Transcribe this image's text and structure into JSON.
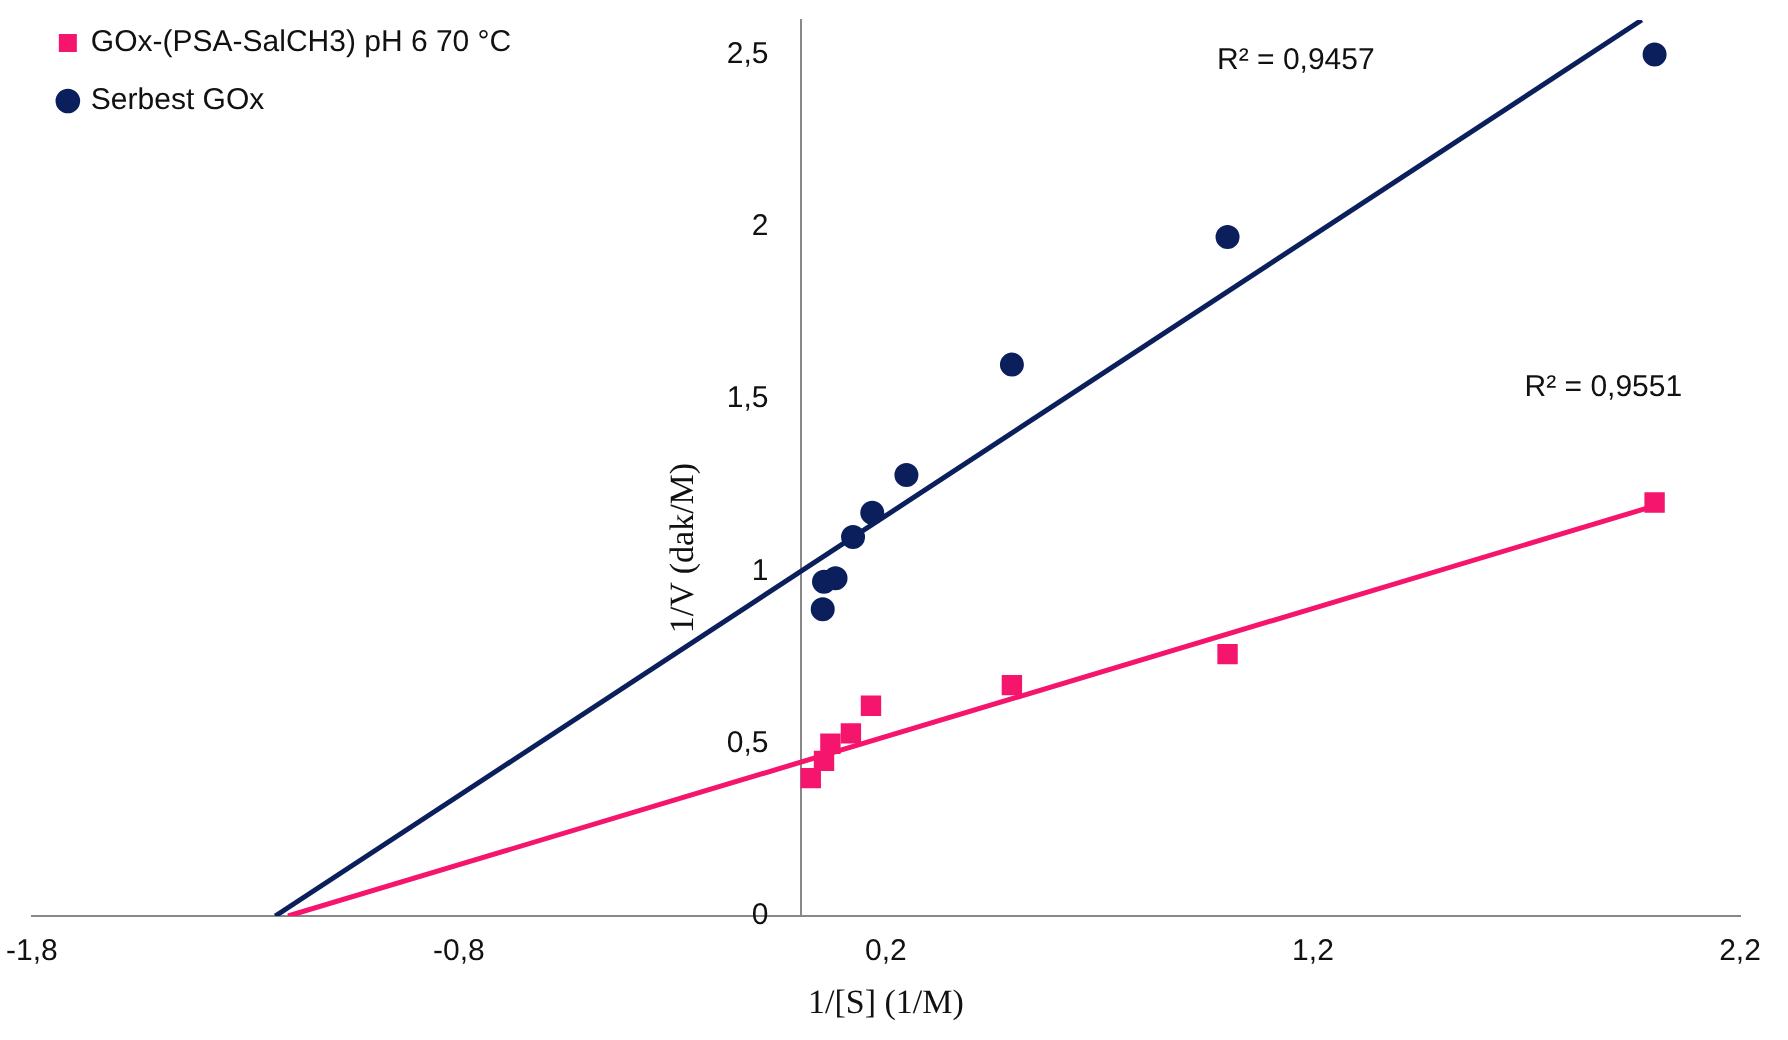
{
  "chart_data": {
    "type": "scatter",
    "xlabel": "1/[S] (1/M)",
    "ylabel": "1/V (dak/M)",
    "xlim": [
      -1.8,
      2.2
    ],
    "xticks": [
      {
        "value": -1.8,
        "label": "-1,8"
      },
      {
        "value": -0.8,
        "label": "-0,8"
      },
      {
        "value": 0.2,
        "label": "0,2"
      },
      {
        "value": 1.2,
        "label": "1,2"
      },
      {
        "value": 2.2,
        "label": "2,2"
      }
    ],
    "ylim": [
      0,
      2.6
    ],
    "yticks": [
      0,
      {
        "value": 0.5,
        "label": "0,5"
      },
      1,
      {
        "value": 1.5,
        "label": "1,5"
      },
      2,
      {
        "value": 2.5,
        "label": "2,5"
      }
    ],
    "legend": "top left",
    "series": [
      {
        "name": "GOx-(PSA-SalCH3) pH 6 70 °C",
        "color": "#f5156c",
        "marker": "square",
        "x": [
          0.024,
          0.055,
          0.07,
          0.118,
          0.165,
          0.495,
          1.0,
          2.0
        ],
        "values": [
          0.4,
          0.45,
          0.5,
          0.53,
          0.61,
          0.67,
          0.76,
          1.2
        ]
      },
      {
        "name": "Serbest GOx",
        "color": "#0a1f5c",
        "marker": "circle",
        "x": [
          0.052,
          0.055,
          0.082,
          0.123,
          0.168,
          0.248,
          0.495,
          1.0,
          2.0
        ],
        "values": [
          0.89,
          0.97,
          0.98,
          1.1,
          1.17,
          1.28,
          1.6,
          1.97,
          2.5
        ]
      },
      {
        "type": "line",
        "color": "#f5156c",
        "line_style": "solid",
        "marker": "none",
        "x": [
          -1.2,
          2.0
        ],
        "values": [
          0,
          1.19
        ]
      },
      {
        "type": "line",
        "color": "#0a1f5c",
        "line_style": "solid",
        "marker": "none",
        "x": [
          -1.23,
          1.97
        ],
        "values": [
          0,
          2.6
        ]
      }
    ],
    "annotations": [
      "R² = 0,9457",
      "R² = 0,9551"
    ]
  }
}
